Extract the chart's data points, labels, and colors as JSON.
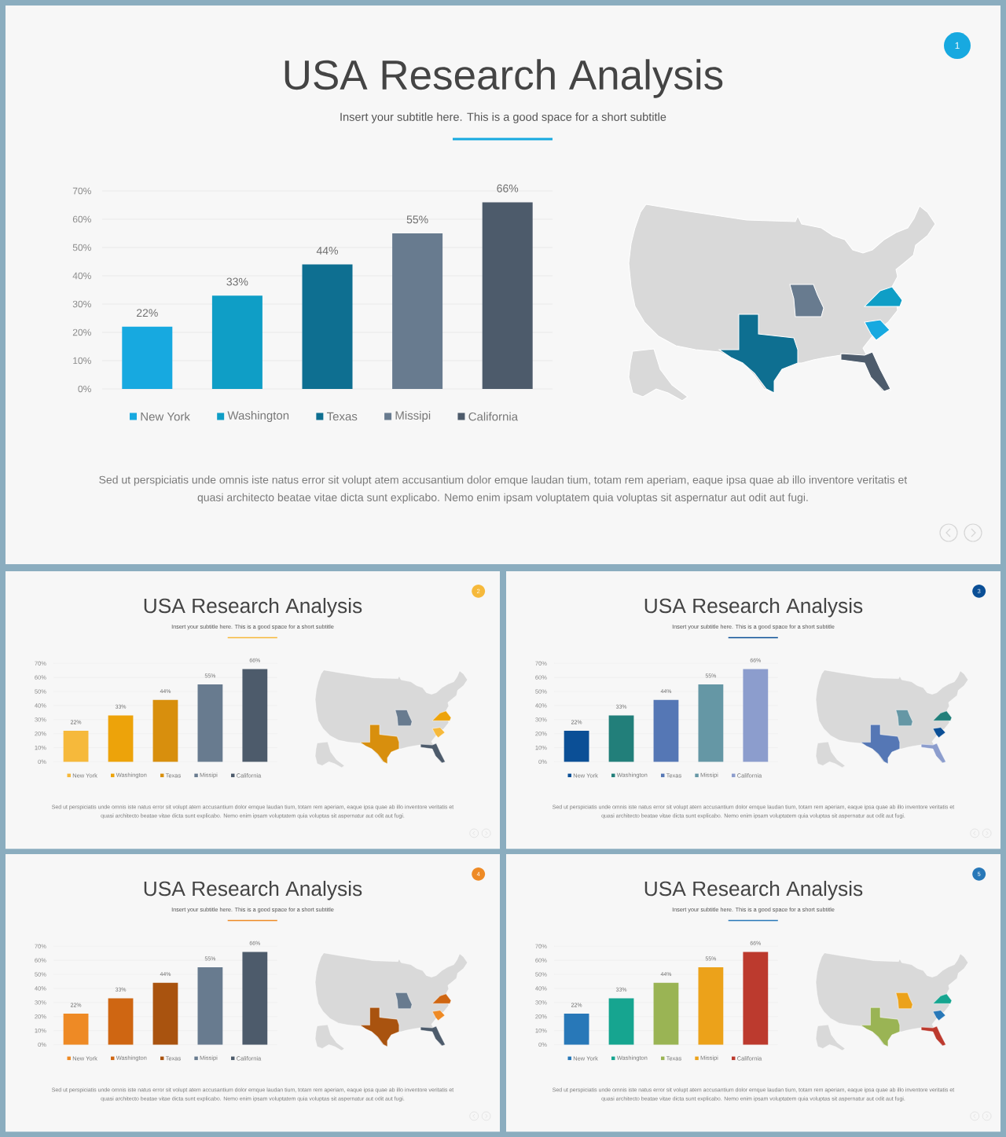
{
  "chart_data": [
    {
      "type": "bar",
      "title": "USA Research Analysis",
      "subtitle": "Insert your subtitle here. This is a good space for a short subtitle",
      "categories": [
        null,
        null,
        null,
        null,
        null
      ],
      "series": [
        {
          "name": "New York",
          "color": "#17a9e0",
          "values": [
            22,
            null,
            null,
            null,
            null
          ],
          "value_labels": [
            "22%",
            null,
            null,
            null,
            null
          ]
        },
        {
          "name": "Washington",
          "color": "#0f9ec6",
          "values": [
            null,
            33,
            null,
            null,
            null
          ],
          "value_labels": [
            null,
            "33%",
            null,
            null,
            null
          ]
        },
        {
          "name": "Texas",
          "color": "#0e6f91",
          "values": [
            null,
            null,
            44,
            null,
            null
          ],
          "value_labels": [
            null,
            null,
            "44%",
            null,
            null
          ]
        },
        {
          "name": "Missipi",
          "color": "#687b8f",
          "values": [
            null,
            null,
            null,
            55,
            null
          ],
          "value_labels": [
            null,
            null,
            null,
            "55%",
            null
          ]
        },
        {
          "name": "California",
          "color": "#4d5b6b",
          "values": [
            null,
            null,
            null,
            null,
            66
          ],
          "value_labels": [
            null,
            null,
            null,
            null,
            "66%"
          ]
        }
      ],
      "ylim": [
        0,
        70
      ],
      "yticks": [
        {
          "value": 0,
          "label": "0%"
        },
        {
          "value": 10,
          "label": "10%"
        },
        {
          "value": 20,
          "label": "20%"
        },
        {
          "value": 30,
          "label": "30%"
        },
        {
          "value": 40,
          "label": "40%"
        },
        {
          "value": 50,
          "label": "50%"
        },
        {
          "value": 60,
          "label": "60%"
        },
        {
          "value": 70,
          "label": "70%"
        }
      ],
      "grid": "y",
      "legend": "bottom",
      "tick_labels": "y",
      "annotations": [
        "Sed ut perspiciatis unde omnis iste natus error sit volupt atem accusantium dolor emque laudan tium, totam rem aperiam, eaque ipsa quae ab illo inventore veritatis et quasi architecto beatae vitae dicta sunt explicabo. Nemo enim ipsam voluptatem quia voluptas sit aspernatur aut odit aut fugi.",
        "1"
      ]
    },
    {
      "type": "bar",
      "title": "USA Research Analysis",
      "subtitle": "Insert your subtitle here. This is a good space for a short subtitle",
      "categories": [
        null,
        null,
        null,
        null,
        null
      ],
      "series": [
        {
          "name": "New York",
          "color": "#f6b93b",
          "values": [
            22,
            null,
            null,
            null,
            null
          ],
          "value_labels": [
            "22%",
            null,
            null,
            null,
            null
          ]
        },
        {
          "name": "Washington",
          "color": "#eda30a",
          "values": [
            null,
            33,
            null,
            null,
            null
          ],
          "value_labels": [
            null,
            "33%",
            null,
            null,
            null
          ]
        },
        {
          "name": "Texas",
          "color": "#d88f0d",
          "values": [
            null,
            null,
            44,
            null,
            null
          ],
          "value_labels": [
            null,
            null,
            "44%",
            null,
            null
          ]
        },
        {
          "name": "Missipi",
          "color": "#687b8f",
          "values": [
            null,
            null,
            null,
            55,
            null
          ],
          "value_labels": [
            null,
            null,
            null,
            "55%",
            null
          ]
        },
        {
          "name": "California",
          "color": "#4d5b6b",
          "values": [
            null,
            null,
            null,
            null,
            66
          ],
          "value_labels": [
            null,
            null,
            null,
            null,
            "66%"
          ]
        }
      ],
      "ylim": [
        0,
        70
      ],
      "yticks": [
        {
          "value": 0,
          "label": "0%"
        },
        {
          "value": 10,
          "label": "10%"
        },
        {
          "value": 20,
          "label": "20%"
        },
        {
          "value": 30,
          "label": "30%"
        },
        {
          "value": 40,
          "label": "40%"
        },
        {
          "value": 50,
          "label": "50%"
        },
        {
          "value": 60,
          "label": "60%"
        },
        {
          "value": 70,
          "label": "70%"
        }
      ],
      "grid": "y",
      "legend": "bottom",
      "tick_labels": "y",
      "annotations": [
        "Sed ut perspiciatis unde omnis iste natus error sit volupt atem accusantium dolor emque laudan tium, totam rem aperiam, eaque ipsa quae ab illo inventore veritatis et quasi architecto beatae vitae dicta sunt explicabo. Nemo enim ipsam voluptatem quia voluptas sit aspernatur aut odit aut fugi.",
        "2"
      ]
    },
    {
      "type": "bar",
      "title": "USA Research Analysis",
      "subtitle": "Insert your subtitle here. This is a good space for a short subtitle",
      "categories": [
        null,
        null,
        null,
        null,
        null
      ],
      "series": [
        {
          "name": "New York",
          "color": "#0b4f96",
          "values": [
            22,
            null,
            null,
            null,
            null
          ],
          "value_labels": [
            "22%",
            null,
            null,
            null,
            null
          ]
        },
        {
          "name": "Washington",
          "color": "#227f7a",
          "values": [
            null,
            33,
            null,
            null,
            null
          ],
          "value_labels": [
            null,
            "33%",
            null,
            null,
            null
          ]
        },
        {
          "name": "Texas",
          "color": "#5577b5",
          "values": [
            null,
            null,
            44,
            null,
            null
          ],
          "value_labels": [
            null,
            null,
            "44%",
            null,
            null
          ]
        },
        {
          "name": "Missipi",
          "color": "#6597a5",
          "values": [
            null,
            null,
            null,
            55,
            null
          ],
          "value_labels": [
            null,
            null,
            null,
            "55%",
            null
          ]
        },
        {
          "name": "California",
          "color": "#8c9dcd",
          "values": [
            null,
            null,
            null,
            null,
            66
          ],
          "value_labels": [
            null,
            null,
            null,
            null,
            "66%"
          ]
        }
      ],
      "ylim": [
        0,
        70
      ],
      "yticks": [
        {
          "value": 0,
          "label": "0%"
        },
        {
          "value": 10,
          "label": "10%"
        },
        {
          "value": 20,
          "label": "20%"
        },
        {
          "value": 30,
          "label": "30%"
        },
        {
          "value": 40,
          "label": "40%"
        },
        {
          "value": 50,
          "label": "50%"
        },
        {
          "value": 60,
          "label": "60%"
        },
        {
          "value": 70,
          "label": "70%"
        }
      ],
      "grid": "y",
      "legend": "bottom",
      "tick_labels": "y",
      "annotations": [
        "Sed ut perspiciatis unde omnis iste natus error sit volupt atem accusantium dolor emque laudan tium, totam rem aperiam, eaque ipsa quae ab illo inventore veritatis et quasi architecto beatae vitae dicta sunt explicabo. Nemo enim ipsam voluptatem quia voluptas sit aspernatur aut odit aut fugi.",
        "3"
      ]
    },
    {
      "type": "bar",
      "title": "USA Research Analysis",
      "subtitle": "Insert your subtitle here. This is a good space for a short subtitle",
      "categories": [
        null,
        null,
        null,
        null,
        null
      ],
      "series": [
        {
          "name": "New York",
          "color": "#ee8a25",
          "values": [
            22,
            null,
            null,
            null,
            null
          ],
          "value_labels": [
            "22%",
            null,
            null,
            null,
            null
          ]
        },
        {
          "name": "Washington",
          "color": "#cf6612",
          "values": [
            null,
            33,
            null,
            null,
            null
          ],
          "value_labels": [
            null,
            "33%",
            null,
            null,
            null
          ]
        },
        {
          "name": "Texas",
          "color": "#a9530f",
          "values": [
            null,
            null,
            44,
            null,
            null
          ],
          "value_labels": [
            null,
            null,
            "44%",
            null,
            null
          ]
        },
        {
          "name": "Missipi",
          "color": "#687b8f",
          "values": [
            null,
            null,
            null,
            55,
            null
          ],
          "value_labels": [
            null,
            null,
            null,
            "55%",
            null
          ]
        },
        {
          "name": "California",
          "color": "#4d5b6b",
          "values": [
            null,
            null,
            null,
            null,
            66
          ],
          "value_labels": [
            null,
            null,
            null,
            null,
            "66%"
          ]
        }
      ],
      "ylim": [
        0,
        70
      ],
      "yticks": [
        {
          "value": 0,
          "label": "0%"
        },
        {
          "value": 10,
          "label": "10%"
        },
        {
          "value": 20,
          "label": "20%"
        },
        {
          "value": 30,
          "label": "30%"
        },
        {
          "value": 40,
          "label": "40%"
        },
        {
          "value": 50,
          "label": "50%"
        },
        {
          "value": 60,
          "label": "60%"
        },
        {
          "value": 70,
          "label": "70%"
        }
      ],
      "grid": "y",
      "legend": "bottom",
      "tick_labels": "y",
      "annotations": [
        "Sed ut perspiciatis unde omnis iste natus error sit volupt atem accusantium dolor emque laudan tium, totam rem aperiam, eaque ipsa quae ab illo inventore veritatis et quasi architecto beatae vitae dicta sunt explicabo. Nemo enim ipsam voluptatem quia voluptas sit aspernatur aut odit aut fugi.",
        "4"
      ]
    },
    {
      "type": "bar",
      "title": "USA Research Analysis",
      "subtitle": "Insert your subtitle here. This is a good space for a short subtitle",
      "categories": [
        null,
        null,
        null,
        null,
        null
      ],
      "series": [
        {
          "name": "New York",
          "color": "#2878b8",
          "values": [
            22,
            null,
            null,
            null,
            null
          ],
          "value_labels": [
            "22%",
            null,
            null,
            null,
            null
          ]
        },
        {
          "name": "Washington",
          "color": "#16a590",
          "values": [
            null,
            33,
            null,
            null,
            null
          ],
          "value_labels": [
            null,
            "33%",
            null,
            null,
            null
          ]
        },
        {
          "name": "Texas",
          "color": "#9ab454",
          "values": [
            null,
            null,
            44,
            null,
            null
          ],
          "value_labels": [
            null,
            null,
            "44%",
            null,
            null
          ]
        },
        {
          "name": "Missipi",
          "color": "#eca21a",
          "values": [
            null,
            null,
            null,
            55,
            null
          ],
          "value_labels": [
            null,
            null,
            null,
            "55%",
            null
          ]
        },
        {
          "name": "California",
          "color": "#bc3a2e",
          "values": [
            null,
            null,
            null,
            null,
            66
          ],
          "value_labels": [
            null,
            null,
            null,
            null,
            "66%"
          ]
        }
      ],
      "ylim": [
        0,
        70
      ],
      "yticks": [
        {
          "value": 0,
          "label": "0%"
        },
        {
          "value": 10,
          "label": "10%"
        },
        {
          "value": 20,
          "label": "20%"
        },
        {
          "value": 30,
          "label": "30%"
        },
        {
          "value": 40,
          "label": "40%"
        },
        {
          "value": 50,
          "label": "50%"
        },
        {
          "value": 60,
          "label": "60%"
        },
        {
          "value": 70,
          "label": "70%"
        }
      ],
      "grid": "y",
      "legend": "bottom",
      "tick_labels": "y",
      "annotations": [
        "Sed ut perspiciatis unde omnis iste natus error sit volupt atem accusantium dolor emque laudan tium, totam rem aperiam, eaque ipsa quae ab illo inventore veritatis et quasi architecto beatae vitae dicta sunt explicabo. Nemo enim ipsam voluptatem quia voluptas sit aspernatur aut odit aut fugi.",
        "5"
      ]
    }
  ]
}
